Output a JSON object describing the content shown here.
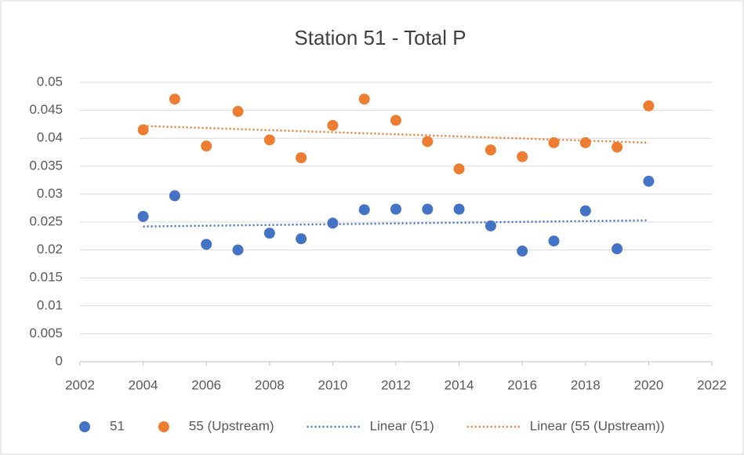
{
  "chart_data": {
    "type": "scatter",
    "title": "Station 51 - Total P",
    "xlim": [
      2002,
      2022
    ],
    "xticks": [
      2002,
      2004,
      2006,
      2008,
      2010,
      2012,
      2014,
      2016,
      2018,
      2020,
      2022
    ],
    "ylim": [
      0,
      0.05
    ],
    "yticks": [
      0,
      0.005,
      0.01,
      0.015,
      0.02,
      0.025,
      0.03,
      0.035,
      0.04,
      0.045,
      0.05
    ],
    "grid": true,
    "legend": "bottom",
    "series": [
      {
        "name": "51",
        "color": "#4472c4",
        "marker": "circle",
        "x": [
          2004,
          2005,
          2006,
          2007,
          2008,
          2009,
          2010,
          2011,
          2012,
          2013,
          2014,
          2015,
          2016,
          2017,
          2018,
          2019,
          2020
        ],
        "values": [
          0.026,
          0.0297,
          0.021,
          0.02,
          0.023,
          0.022,
          0.0248,
          0.0272,
          0.0273,
          0.0273,
          0.0273,
          0.0243,
          0.0198,
          0.0216,
          0.027,
          0.0202,
          0.0323
        ]
      },
      {
        "name": "55 (Upstream)",
        "color": "#ed7d31",
        "marker": "circle",
        "x": [
          2004,
          2005,
          2006,
          2007,
          2008,
          2009,
          2010,
          2011,
          2012,
          2013,
          2014,
          2015,
          2016,
          2017,
          2018,
          2019,
          2020
        ],
        "values": [
          0.0415,
          0.047,
          0.0386,
          0.0448,
          0.0397,
          0.0365,
          0.0423,
          0.047,
          0.0432,
          0.0394,
          0.0345,
          0.0379,
          0.0367,
          0.0392,
          0.0392,
          0.0384,
          0.0458
        ]
      },
      {
        "name": "Linear (51)",
        "color": "#4472c4",
        "marker": "dotted-line",
        "x": [
          2004,
          2020
        ],
        "values": [
          0.0242,
          0.0253
        ]
      },
      {
        "name": "Linear (55 (Upstream))",
        "color": "#ed7d31",
        "marker": "dotted-line",
        "x": [
          2004,
          2020
        ],
        "values": [
          0.0422,
          0.0392
        ]
      }
    ]
  }
}
